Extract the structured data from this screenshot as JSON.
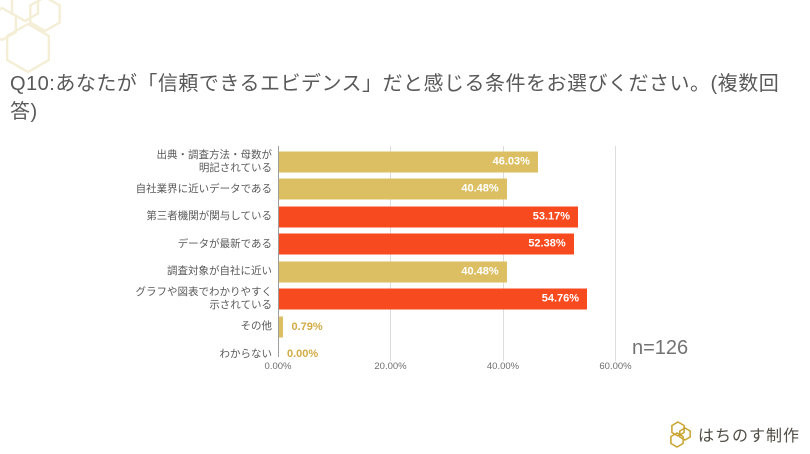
{
  "slide": {
    "title": "Q10:あなたが「信頼できるエビデンス」だと感じる条件をお選びください。(複数回答)",
    "sample_size_label": "n=126"
  },
  "chart_data": {
    "type": "bar",
    "orientation": "horizontal",
    "title": "",
    "xlabel": "",
    "ylabel": "",
    "xlim": [
      0,
      60
    ],
    "grid": "vertical-lines at 20% intervals",
    "legend": "none",
    "x_tick_values": [
      0,
      20,
      40,
      60
    ],
    "x_tick_labels": [
      "0.00%",
      "20.00%",
      "40.00%",
      "60.00%"
    ],
    "categories": [
      "出典・調査方法・母数が明記されている",
      "自社業界に近いデータである",
      "第三者機関が関与している",
      "データが最新である",
      "調査対象が自社に近い",
      "グラフや図表でわかりやすく示されている",
      "その他",
      "わからない"
    ],
    "category_display_lines": [
      [
        "出典・調査方法・母数が",
        "明記されている"
      ],
      [
        "自社業界に近いデータである"
      ],
      [
        "第三者機関が関与している"
      ],
      [
        "データが最新である"
      ],
      [
        "調査対象が自社に近い"
      ],
      [
        "グラフや図表でわかりやすく",
        "示されている"
      ],
      [
        "その他"
      ],
      [
        "わからない"
      ]
    ],
    "values": [
      46.03,
      40.48,
      53.17,
      52.38,
      40.48,
      54.76,
      0.79,
      0.0
    ],
    "value_labels": [
      "46.03%",
      "40.48%",
      "53.17%",
      "52.38%",
      "40.48%",
      "54.76%",
      "0.79%",
      "0.00%"
    ],
    "bar_colors": [
      "#dcbf63",
      "#dcbf63",
      "#f84a1f",
      "#f84a1f",
      "#dcbf63",
      "#f84a1f",
      "#dcbf63",
      "#dcbf63"
    ]
  },
  "footer": {
    "brand": "はちのす制作"
  },
  "colors": {
    "gold_bar": "#dcbf63",
    "orange_bar": "#f84a1f",
    "inside_value_text": "#ffffff",
    "outside_value_text": "#d2ab45",
    "category_text": "#595959",
    "tick_text": "#6e6e6e",
    "title_text": "#595959",
    "sample_size_text": "#737373",
    "axis_line": "#9e9e9e",
    "gridline": "#dcdcdc",
    "deco_hexagon": "#f5eed6",
    "logo_gold": "#c9a22c",
    "footer_text": "#514e46"
  }
}
